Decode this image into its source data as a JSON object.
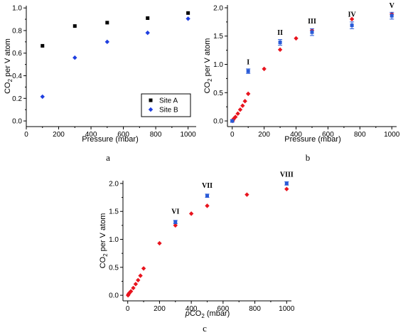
{
  "chart_data": [
    {
      "type": "scatter",
      "panel_label": "a",
      "xlabel": "Pressure (mbar)",
      "ylabel_main": "CO",
      "ylabel_sub": "2",
      "ylabel_rest": " per V atom",
      "xlim": [
        0,
        1050
      ],
      "ylim": [
        -0.05,
        1.02
      ],
      "xticks": [
        0,
        200,
        400,
        600,
        800,
        1000
      ],
      "yticks": [
        "0.0",
        "0.2",
        "0.4",
        "0.6",
        "0.8",
        "1.0"
      ],
      "legend": {
        "position": "lower-right"
      },
      "series": [
        {
          "name": "Site A",
          "marker": "square",
          "color": "#000000",
          "x": [
            100,
            300,
            500,
            750,
            1000
          ],
          "y": [
            0.665,
            0.84,
            0.87,
            0.91,
            0.955
          ]
        },
        {
          "name": "Site B",
          "marker": "diamond",
          "color": "#1f3fe0",
          "x": [
            100,
            300,
            500,
            750,
            1000
          ],
          "y": [
            0.215,
            0.56,
            0.7,
            0.78,
            0.905
          ]
        }
      ]
    },
    {
      "type": "scatter",
      "panel_label": "b",
      "xlabel": "Pressure (mbar)",
      "ylabel_main": "CO",
      "ylabel_sub": "2",
      "ylabel_rest": " per V atom",
      "xlim": [
        -30,
        1030
      ],
      "ylim": [
        -0.1,
        2.05
      ],
      "xticks": [
        0,
        200,
        400,
        600,
        800,
        1000
      ],
      "yticks": [
        "0.0",
        "0.5",
        "1.0",
        "1.5",
        "2.0"
      ],
      "series": [
        {
          "marker": "diamond",
          "color": "#e8141e",
          "x": [
            2,
            5,
            10,
            20,
            35,
            50,
            65,
            80,
            100,
            200,
            300,
            400,
            500,
            750,
            1000
          ],
          "y": [
            0.0,
            0.02,
            0.04,
            0.07,
            0.13,
            0.2,
            0.27,
            0.35,
            0.48,
            0.92,
            1.26,
            1.46,
            1.6,
            1.8,
            1.89
          ]
        },
        {
          "marker": "square",
          "color": "#2a5bd7",
          "error": true,
          "x": [
            0,
            100,
            300,
            500,
            750,
            1000
          ],
          "y": [
            0.0,
            0.88,
            1.39,
            1.57,
            1.69,
            1.86
          ],
          "err": [
            0.02,
            0.04,
            0.05,
            0.06,
            0.06,
            0.06
          ]
        }
      ],
      "annotations": [
        {
          "text": "I",
          "x": 100,
          "y": 1.0
        },
        {
          "text": "II",
          "x": 300,
          "y": 1.52
        },
        {
          "text": "III",
          "x": 500,
          "y": 1.72
        },
        {
          "text": "IV",
          "x": 750,
          "y": 1.84
        },
        {
          "text": "V",
          "x": 1000,
          "y": 2.0
        }
      ]
    },
    {
      "type": "scatter",
      "panel_label": "c",
      "xlabel_italic": "p",
      "xlabel_main": "CO",
      "xlabel_sub": "2",
      "xlabel_rest": " (mbar)",
      "ylabel_main": "CO",
      "ylabel_sub": "2",
      "ylabel_rest": " per V atom",
      "xlim": [
        -30,
        1030
      ],
      "ylim": [
        -0.1,
        2.05
      ],
      "xticks": [
        0,
        200,
        400,
        600,
        800,
        1000
      ],
      "yticks": [
        "0.0",
        "0.5",
        "1.0",
        "1.5",
        "2.0"
      ],
      "series": [
        {
          "marker": "diamond",
          "color": "#e8141e",
          "x": [
            2,
            5,
            10,
            20,
            35,
            50,
            65,
            80,
            100,
            200,
            300,
            400,
            500,
            750,
            1000
          ],
          "y": [
            0.0,
            0.02,
            0.04,
            0.07,
            0.13,
            0.2,
            0.27,
            0.35,
            0.48,
            0.93,
            1.25,
            1.46,
            1.6,
            1.8,
            1.9
          ]
        },
        {
          "marker": "square",
          "color": "#2a5bd7",
          "error": true,
          "x": [
            300,
            500,
            1000
          ],
          "y": [
            1.31,
            1.78,
            2.0
          ],
          "err": [
            0.03,
            0.03,
            0.03
          ]
        }
      ],
      "annotations": [
        {
          "text": "VI",
          "x": 300,
          "y": 1.46
        },
        {
          "text": "VII",
          "x": 500,
          "y": 1.92
        },
        {
          "text": "VIII",
          "x": 1000,
          "y": 2.12
        }
      ]
    }
  ]
}
